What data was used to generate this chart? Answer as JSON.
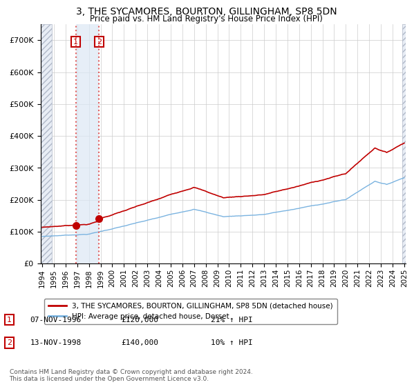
{
  "title": "3, THE SYCAMORES, BOURTON, GILLINGHAM, SP8 5DN",
  "subtitle": "Price paid vs. HM Land Registry's House Price Index (HPI)",
  "legend_line1": "3, THE SYCAMORES, BOURTON, GILLINGHAM, SP8 5DN (detached house)",
  "legend_line2": "HPI: Average price, detached house, Dorset",
  "footer": "Contains HM Land Registry data © Crown copyright and database right 2024.\nThis data is licensed under the Open Government Licence v3.0.",
  "sale1_date": "07-NOV-1996",
  "sale1_price": 120000,
  "sale1_hpi": "21% ↑ HPI",
  "sale2_date": "13-NOV-1998",
  "sale2_price": 140000,
  "sale2_hpi": "10% ↑ HPI",
  "hpi_color": "#7ab3e0",
  "price_color": "#c00000",
  "dot_color": "#c00000",
  "vline_color": "#e06060",
  "shade_color": "#dce8f5",
  "hatch_color": "#d0d8e8",
  "ylim": [
    0,
    750000
  ],
  "yticks": [
    0,
    100000,
    200000,
    300000,
    400000,
    500000,
    600000,
    700000
  ],
  "xstart_year": 1994,
  "xend_year": 2025,
  "background_color": "#ffffff",
  "plot_bg_color": "#ffffff",
  "grid_color": "#cccccc"
}
